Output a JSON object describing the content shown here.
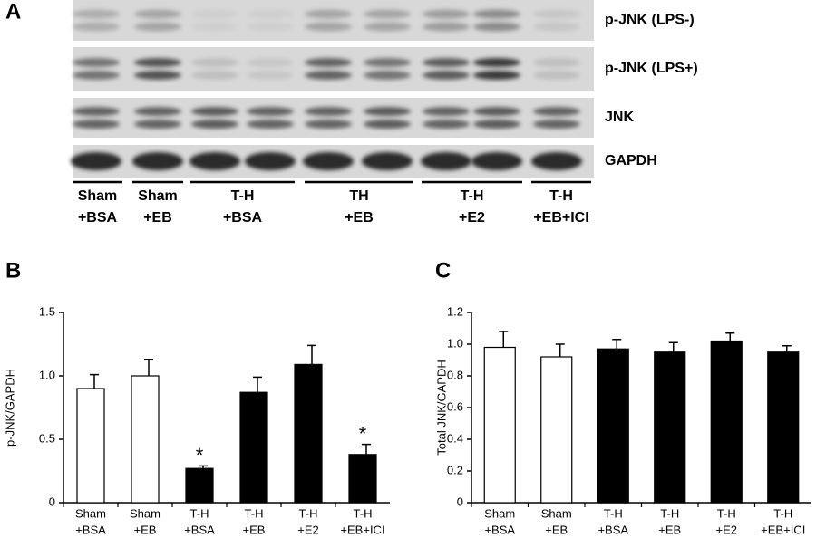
{
  "blot": {
    "panel_label": "A",
    "rows": [
      "p-JNK (LPS-)",
      "p-JNK (LPS+)",
      "JNK",
      "GAPDH"
    ],
    "groups": [
      [
        "Sham",
        "+BSA"
      ],
      [
        "Sham",
        "+EB"
      ],
      [
        "T-H",
        "+BSA"
      ],
      [
        "TH",
        "+EB"
      ],
      [
        "T-H",
        "+E2"
      ],
      [
        "T-H",
        "+EB+ICI"
      ]
    ]
  },
  "chart_data": [
    {
      "type": "bar",
      "panel_label": "B",
      "y_label": "p-JNK/GAPDH",
      "categories": [
        [
          "Sham",
          "+BSA"
        ],
        [
          "Sham",
          "+EB"
        ],
        [
          "T-H",
          "+BSA"
        ],
        [
          "T-H",
          "+EB"
        ],
        [
          "T-H",
          "+E2"
        ],
        [
          "T-H",
          "+EB+ICI"
        ]
      ],
      "values": [
        0.9,
        1.0,
        0.27,
        0.87,
        1.09,
        0.38
      ],
      "errors": [
        0.11,
        0.13,
        0.02,
        0.12,
        0.15,
        0.08
      ],
      "bar_annotations": [
        null,
        null,
        "*",
        null,
        null,
        "*"
      ],
      "colors": [
        "#ffffff",
        "#ffffff",
        "#000000",
        "#000000",
        "#000000",
        "#000000"
      ],
      "ylim": [
        0,
        1.5
      ],
      "yticks": [
        0,
        {
          "value": 0.5,
          "label": "0.5"
        },
        {
          "value": 1,
          "label": "1.0"
        },
        1.5
      ]
    },
    {
      "type": "bar",
      "panel_label": "C",
      "y_label": "Total JNK/GAPDH",
      "categories": [
        [
          "Sham",
          "+BSA"
        ],
        [
          "Sham",
          "+EB"
        ],
        [
          "T-H",
          "+BSA"
        ],
        [
          "T-H",
          "+EB"
        ],
        [
          "T-H",
          "+E2"
        ],
        [
          "T-H",
          "+EB+ICI"
        ]
      ],
      "values": [
        0.98,
        0.92,
        0.97,
        0.95,
        1.02,
        0.95
      ],
      "errors": [
        0.1,
        0.08,
        0.06,
        0.06,
        0.05,
        0.04
      ],
      "colors": [
        "#ffffff",
        "#ffffff",
        "#000000",
        "#000000",
        "#000000",
        "#000000"
      ],
      "ylim": [
        0,
        1.2
      ],
      "yticks": [
        0,
        0.2,
        0.4,
        0.6,
        0.8,
        {
          "value": 1,
          "label": "1.0"
        },
        1.2
      ]
    }
  ]
}
